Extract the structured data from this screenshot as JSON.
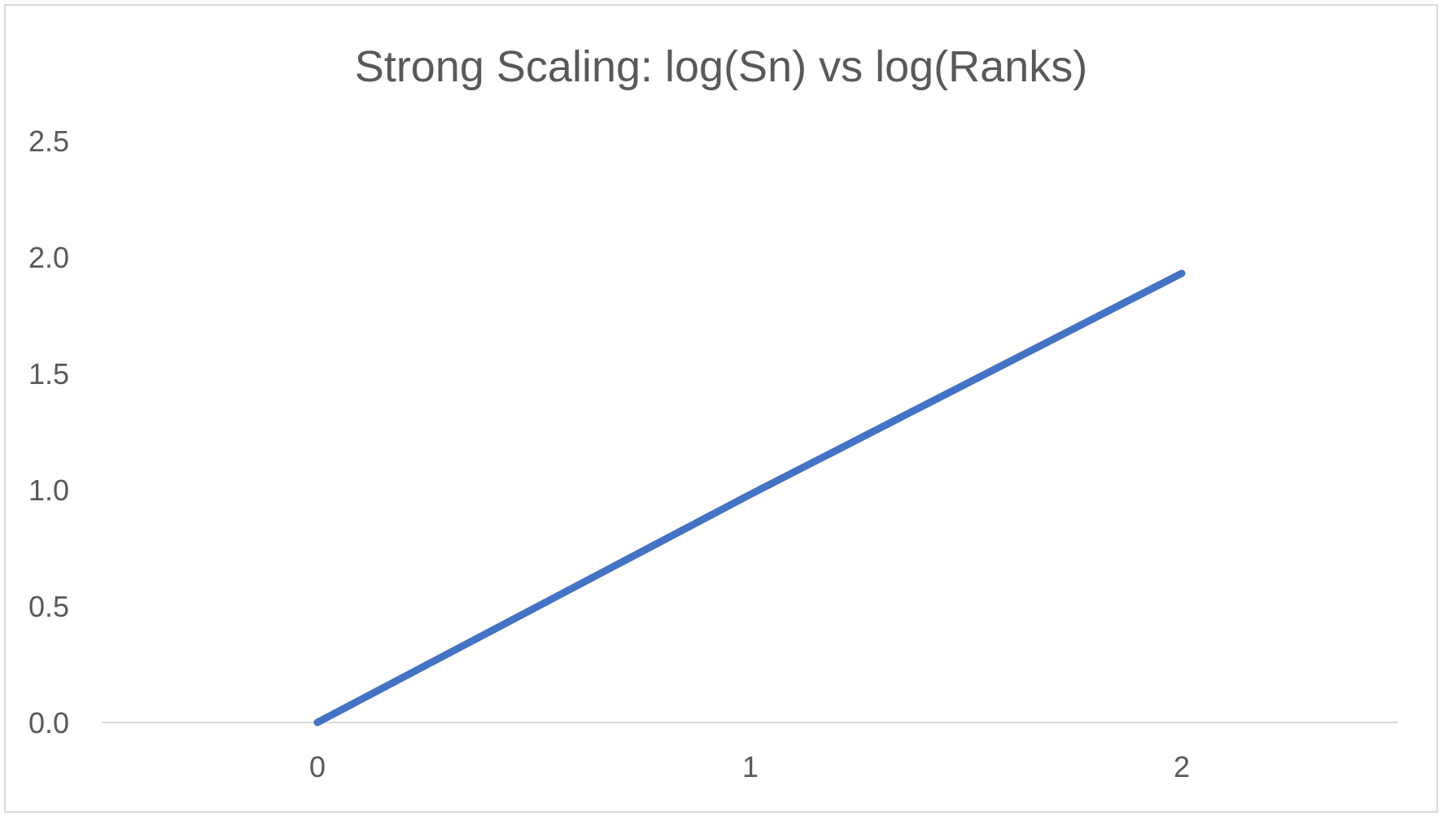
{
  "chart_data": {
    "type": "line",
    "title": "Strong Scaling: log(Sn) vs log(Ranks)",
    "xlabel": "",
    "ylabel": "",
    "categories": [
      "0",
      "1",
      "2"
    ],
    "series": [
      {
        "values": [
          0.0,
          0.98,
          1.93
        ]
      }
    ],
    "y_ticks": [
      "0.0",
      "0.5",
      "1.0",
      "1.5",
      "2.0",
      "2.5"
    ],
    "ylim": [
      0,
      2.5
    ],
    "grid": false,
    "legend": "none",
    "colors": {
      "series": "#4472C4",
      "text": "#595959",
      "axis": "#D9D9D9",
      "border": "#D9D9D9"
    }
  }
}
